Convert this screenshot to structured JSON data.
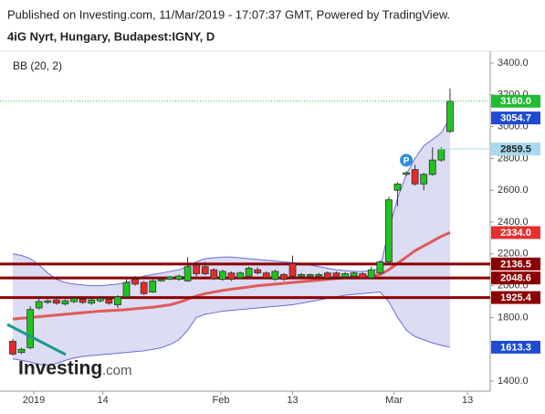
{
  "header": {
    "published": "Published on Investing.com, 11/Mar/2019 - 17:07:37 GMT, Powered by TradingView.",
    "symbol": "4iG Nyrt, Hungary, Budapest:IGNY, D"
  },
  "branding": {
    "logo": "Investing",
    "logo_suffix": ".com"
  },
  "marker": "P",
  "chart_data": {
    "type": "candlestick",
    "indicator": "BB (20, 2)",
    "open": [
      1650,
      1580,
      1610,
      1860,
      1895,
      1910,
      1885,
      1900,
      1915,
      1890,
      1905,
      1915,
      1880,
      1930,
      2040,
      2020,
      1960,
      2030,
      2040,
      2040,
      2030,
      2130,
      2120,
      2100,
      2040,
      2080,
      2050,
      2060,
      2100,
      2080,
      2040,
      2070,
      2140,
      2060,
      2060,
      2060,
      2080,
      2080,
      2055,
      2060,
      2075,
      2050,
      2080,
      2150,
      2600,
      2700,
      2730,
      2640,
      2700,
      2790,
      2970
    ],
    "high": [
      1665,
      1610,
      1870,
      1930,
      1915,
      1920,
      1915,
      1930,
      1925,
      1920,
      1935,
      1925,
      1940,
      2040,
      2060,
      2030,
      2040,
      2050,
      2060,
      2070,
      2180,
      2140,
      2150,
      2110,
      2100,
      2090,
      2090,
      2120,
      2115,
      2090,
      2100,
      2080,
      2190,
      2080,
      2075,
      2080,
      2090,
      2090,
      2085,
      2090,
      2085,
      2120,
      2160,
      2560,
      2650,
      2720,
      2760,
      2710,
      2870,
      2870,
      3240
    ],
    "low": [
      1560,
      1570,
      1600,
      1850,
      1885,
      1880,
      1875,
      1890,
      1885,
      1880,
      1895,
      1880,
      1860,
      1920,
      2000,
      1940,
      1955,
      2025,
      2035,
      2030,
      2025,
      2060,
      2065,
      2035,
      2030,
      2030,
      2045,
      2055,
      2070,
      2040,
      2030,
      2030,
      2050,
      2050,
      2055,
      2050,
      2040,
      2045,
      2045,
      2050,
      2040,
      2045,
      2070,
      2130,
      2500,
      2690,
      2630,
      2600,
      2690,
      2780,
      2960
    ],
    "close": [
      1570,
      1600,
      1850,
      1900,
      1905,
      1890,
      1905,
      1920,
      1895,
      1910,
      1920,
      1890,
      1930,
      2020,
      2010,
      1950,
      2030,
      2040,
      2055,
      2060,
      2120,
      2075,
      2075,
      2045,
      2090,
      2040,
      2080,
      2110,
      2080,
      2050,
      2090,
      2040,
      2060,
      2070,
      2070,
      2070,
      2050,
      2055,
      2075,
      2080,
      2050,
      2100,
      2150,
      2540,
      2640,
      2710,
      2640,
      2700,
      2790,
      2859.5,
      3160
    ],
    "up_color": "#1fc41f",
    "down_color": "#e52a2a",
    "bands": {
      "upper": {
        "color": "#6a6ae0",
        "values": [
          2200,
          2190,
          2170,
          2130,
          2080,
          2040,
          2020,
          2010,
          2005,
          2000,
          2000,
          2005,
          2010,
          2020,
          2040,
          2060,
          2070,
          2080,
          2090,
          2100,
          2120,
          2150,
          2170,
          2175,
          2180,
          2180,
          2175,
          2170,
          2165,
          2160,
          2155,
          2150,
          2145,
          2140,
          2130,
          2120,
          2110,
          2100,
          2095,
          2090,
          2090,
          2095,
          2110,
          2350,
          2550,
          2700,
          2800,
          2880,
          2920,
          2960,
          3054.7
        ]
      },
      "basis": {
        "color": "#e05a5a",
        "values": [
          1790,
          1795,
          1800,
          1805,
          1810,
          1815,
          1820,
          1825,
          1830,
          1835,
          1840,
          1843,
          1846,
          1850,
          1855,
          1860,
          1865,
          1872,
          1880,
          1895,
          1915,
          1935,
          1950,
          1960,
          1970,
          1978,
          1985,
          1992,
          2000,
          2005,
          2010,
          2015,
          2020,
          2025,
          2030,
          2035,
          2040,
          2045,
          2050,
          2053,
          2056,
          2060,
          2070,
          2100,
          2140,
          2180,
          2220,
          2250,
          2280,
          2310,
          2334
        ]
      },
      "lower": {
        "color": "#6a6ae0",
        "values": [
          1540,
          1530,
          1520,
          1505,
          1500,
          1510,
          1530,
          1545,
          1555,
          1560,
          1565,
          1570,
          1575,
          1580,
          1585,
          1590,
          1600,
          1610,
          1630,
          1660,
          1720,
          1800,
          1820,
          1830,
          1840,
          1845,
          1850,
          1855,
          1860,
          1865,
          1870,
          1875,
          1880,
          1890,
          1900,
          1910,
          1920,
          1930,
          1940,
          1945,
          1950,
          1955,
          1960,
          1900,
          1800,
          1720,
          1680,
          1660,
          1640,
          1625,
          1613.3
        ]
      },
      "fill": "#dcdcf2"
    },
    "levels": [
      {
        "value": 2136.5,
        "label": "2136.5",
        "color": "#8b0000"
      },
      {
        "value": 2048.6,
        "label": "2048.6",
        "color": "#8b0000"
      },
      {
        "value": 1925.4,
        "label": "1925.4",
        "color": "#8b0000"
      }
    ],
    "price_labels": [
      {
        "value": 3160,
        "label": "3160.0",
        "color": "#22bb33",
        "text_color": "#ffffff",
        "line": "dotted"
      },
      {
        "value": 3054.7,
        "label": "3054.7",
        "color": "#1e4bd2",
        "text_color": "#ffffff"
      },
      {
        "value": 2859.5,
        "label": "2859.5",
        "color": "#a9d9f0",
        "text_color": "#222222",
        "line": "solid"
      },
      {
        "value": 2334,
        "label": "2334.0",
        "color": "#e53030",
        "text_color": "#ffffff"
      },
      {
        "value": 1613.3,
        "label": "1613.3",
        "color": "#1e4bd2",
        "text_color": "#ffffff"
      }
    ],
    "xlim": [
      -1.46,
      54.39
    ],
    "xticks": [
      {
        "value": 2.4,
        "label": "2019"
      },
      {
        "value": 10.3,
        "label": "14"
      },
      {
        "value": 23.8,
        "label": "Feb"
      },
      {
        "value": 32.0,
        "label": "13"
      },
      {
        "value": 43.6,
        "label": "Mar"
      },
      {
        "value": 52.0,
        "label": "13"
      }
    ],
    "ylim": [
      1336.8,
      3474.7
    ],
    "yticks": [
      {
        "value": 1400,
        "label": "1400.0"
      },
      {
        "value": 1600,
        "label": "1600.0"
      },
      {
        "value": 1800,
        "label": "1800.0"
      },
      {
        "value": 2000,
        "label": "2000.0"
      },
      {
        "value": 2200,
        "label": "2200.0"
      },
      {
        "value": 2400,
        "label": "2400.0"
      },
      {
        "value": 2600,
        "label": "2600.0"
      },
      {
        "value": 2800,
        "label": "2800.0"
      },
      {
        "value": 3000,
        "label": "3000.0"
      },
      {
        "value": 3200,
        "label": "3200.0"
      },
      {
        "value": 3400,
        "label": "3400.0"
      }
    ]
  }
}
